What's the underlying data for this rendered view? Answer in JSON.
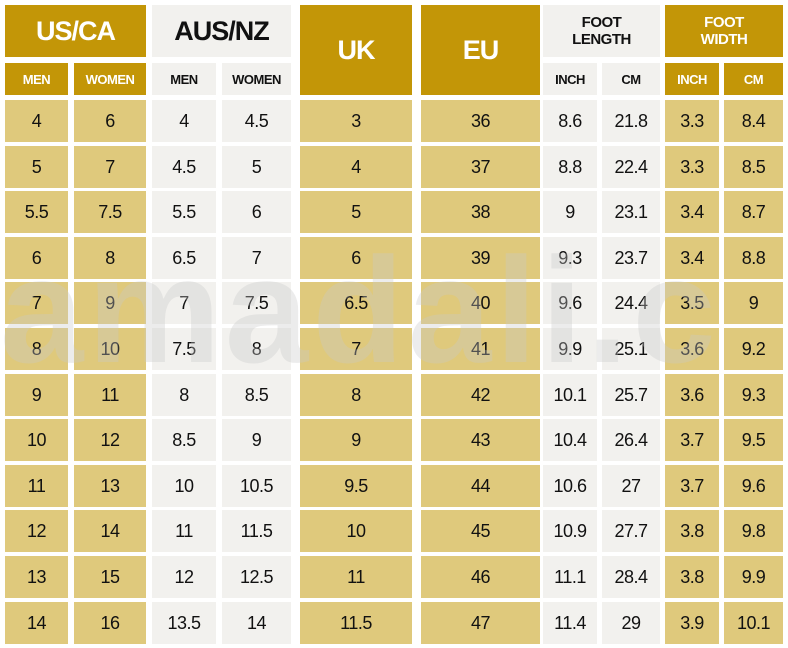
{
  "headers": {
    "us_ca": "US/CA",
    "aus_nz": "AUS/NZ",
    "uk": "UK",
    "eu": "EU",
    "foot_length": "FOOT LENGTH",
    "foot_width": "FOOT WIDTH",
    "men": "MEN",
    "women": "WOMEN",
    "inch": "INCH",
    "cm": "CM"
  },
  "watermark": "amadali.c",
  "colors": {
    "gold": "#c39607",
    "light_gold": "#dfc97c",
    "grey": "#f2f1ee"
  },
  "rows": [
    [
      "4",
      "6",
      "4",
      "4.5",
      "3",
      "36",
      "8.6",
      "21.8",
      "3.3",
      "8.4"
    ],
    [
      "5",
      "7",
      "4.5",
      "5",
      "4",
      "37",
      "8.8",
      "22.4",
      "3.3",
      "8.5"
    ],
    [
      "5.5",
      "7.5",
      "5.5",
      "6",
      "5",
      "38",
      "9",
      "23.1",
      "3.4",
      "8.7"
    ],
    [
      "6",
      "8",
      "6.5",
      "7",
      "6",
      "39",
      "9.3",
      "23.7",
      "3.4",
      "8.8"
    ],
    [
      "7",
      "9",
      "7",
      "7.5",
      "6.5",
      "40",
      "9.6",
      "24.4",
      "3.5",
      "9"
    ],
    [
      "8",
      "10",
      "7.5",
      "8",
      "7",
      "41",
      "9.9",
      "25.1",
      "3.6",
      "9.2"
    ],
    [
      "9",
      "11",
      "8",
      "8.5",
      "8",
      "42",
      "10.1",
      "25.7",
      "3.6",
      "9.3"
    ],
    [
      "10",
      "12",
      "8.5",
      "9",
      "9",
      "43",
      "10.4",
      "26.4",
      "3.7",
      "9.5"
    ],
    [
      "11",
      "13",
      "10",
      "10.5",
      "9.5",
      "44",
      "10.6",
      "27",
      "3.7",
      "9.6"
    ],
    [
      "12",
      "14",
      "11",
      "11.5",
      "10",
      "45",
      "10.9",
      "27.7",
      "3.8",
      "9.8"
    ],
    [
      "13",
      "15",
      "12",
      "12.5",
      "11",
      "46",
      "11.1",
      "28.4",
      "3.8",
      "9.9"
    ],
    [
      "14",
      "16",
      "13.5",
      "14",
      "11.5",
      "47",
      "11.4",
      "29",
      "3.9",
      "10.1"
    ]
  ]
}
